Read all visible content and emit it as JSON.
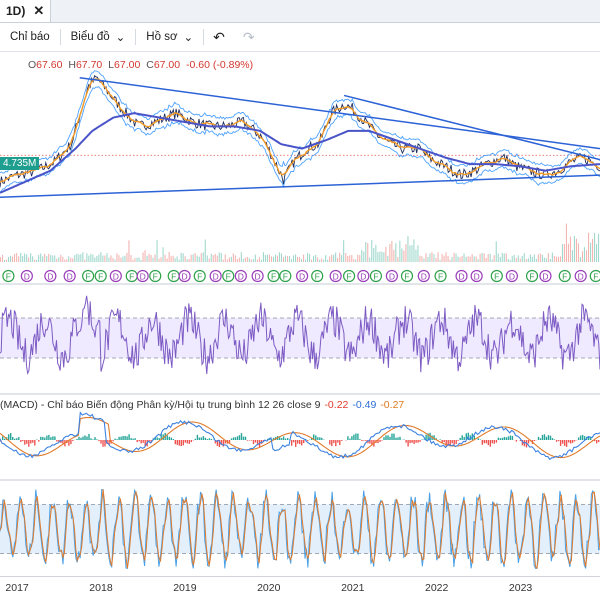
{
  "tab": {
    "title": "1D)",
    "close_glyph": "✕"
  },
  "toolbar": {
    "indicators_label": "Chỉ báo",
    "chart_type_label": "Biểu đồ",
    "profile_label": "Hồ sơ",
    "chevron": "⌄",
    "undo_glyph": "↶",
    "redo_glyph": "↷"
  },
  "ohlc": {
    "open_label": "O",
    "open": "67.60",
    "high_label": "H",
    "high": "67.70",
    "low_label": "L",
    "low": "67.00",
    "close_label": "C",
    "close": "67.00",
    "change": "-0.60 (-0.89%)"
  },
  "volume_label": "4.735M",
  "macd": {
    "title": "(MACD) - Chỉ báo Biến động Phân kỳ/Hội tụ trung bình 12 26 close 9",
    "value1": "-0.22",
    "value2": "-0.49",
    "value3": "-0.27"
  },
  "colors": {
    "price": "#1f2d5c",
    "ma_fast": "#f29a26",
    "ma_slow": "#4a54c9",
    "band": "#4fa3ff",
    "trendline": "#2c62d6",
    "rsi": "#7d5bc4",
    "rsi_fill": "#efeaff",
    "stoch_k": "#4aa0e6",
    "stoch_d": "#e07a2b",
    "stoch_fill": "#e3f0fb",
    "macd_line": "#3d82e0",
    "signal_line": "#e17b2a",
    "hist_up": "#26a69a",
    "hist_down": "#ef5350",
    "dividend": "#9a3db8",
    "earnings": "#2fa14a"
  },
  "markers": [
    {
      "t": 2017.0,
      "type": "F"
    },
    {
      "t": 2017.22,
      "type": "D"
    },
    {
      "t": 2017.5,
      "type": "D"
    },
    {
      "t": 2017.73,
      "type": "D"
    },
    {
      "t": 2017.95,
      "type": "F"
    },
    {
      "t": 2018.1,
      "type": "F"
    },
    {
      "t": 2018.28,
      "type": "D"
    },
    {
      "t": 2018.47,
      "type": "F"
    },
    {
      "t": 2018.6,
      "type": "D"
    },
    {
      "t": 2018.75,
      "type": "F"
    },
    {
      "t": 2018.97,
      "type": "F"
    },
    {
      "t": 2019.1,
      "type": "D"
    },
    {
      "t": 2019.28,
      "type": "F"
    },
    {
      "t": 2019.47,
      "type": "D"
    },
    {
      "t": 2019.62,
      "type": "F"
    },
    {
      "t": 2019.77,
      "type": "D"
    },
    {
      "t": 2019.97,
      "type": "D"
    },
    {
      "t": 2020.16,
      "type": "F"
    },
    {
      "t": 2020.3,
      "type": "F"
    },
    {
      "t": 2020.5,
      "type": "D"
    },
    {
      "t": 2020.68,
      "type": "F"
    },
    {
      "t": 2020.9,
      "type": "D"
    },
    {
      "t": 2021.06,
      "type": "F"
    },
    {
      "t": 2021.23,
      "type": "D"
    },
    {
      "t": 2021.38,
      "type": "F"
    },
    {
      "t": 2021.57,
      "type": "D"
    },
    {
      "t": 2021.75,
      "type": "F"
    },
    {
      "t": 2021.95,
      "type": "D"
    },
    {
      "t": 2022.15,
      "type": "F"
    },
    {
      "t": 2022.4,
      "type": "D"
    },
    {
      "t": 2022.58,
      "type": "D"
    },
    {
      "t": 2022.82,
      "type": "F"
    },
    {
      "t": 2023.0,
      "type": "D"
    },
    {
      "t": 2023.24,
      "type": "F"
    },
    {
      "t": 2023.4,
      "type": "D"
    },
    {
      "t": 2023.63,
      "type": "F"
    },
    {
      "t": 2023.82,
      "type": "D"
    },
    {
      "t": 2024.0,
      "type": "F"
    }
  ],
  "chart_data": {
    "type": "line",
    "interval": "1D",
    "x_tick_labels": [
      "2017",
      "2018",
      "2019",
      "2020",
      "2021",
      "2022",
      "2023"
    ],
    "x_range": [
      2016.9,
      2024.05
    ],
    "price_pane": {
      "ylim": [
        40,
        110
      ],
      "price_points": [
        [
          2016.9,
          55
        ],
        [
          2017.1,
          58
        ],
        [
          2017.35,
          60
        ],
        [
          2017.55,
          64
        ],
        [
          2017.75,
          72
        ],
        [
          2017.85,
          85
        ],
        [
          2017.95,
          98
        ],
        [
          2018.05,
          102
        ],
        [
          2018.18,
          96
        ],
        [
          2018.35,
          88
        ],
        [
          2018.55,
          80
        ],
        [
          2018.75,
          82
        ],
        [
          2019.0,
          86
        ],
        [
          2019.2,
          82
        ],
        [
          2019.4,
          80
        ],
        [
          2019.6,
          80
        ],
        [
          2019.8,
          82
        ],
        [
          2020.0,
          76
        ],
        [
          2020.1,
          70
        ],
        [
          2020.2,
          62
        ],
        [
          2020.28,
          56
        ],
        [
          2020.4,
          64
        ],
        [
          2020.55,
          70
        ],
        [
          2020.7,
          72
        ],
        [
          2020.85,
          86
        ],
        [
          2021.0,
          90
        ],
        [
          2021.1,
          88
        ],
        [
          2021.25,
          82
        ],
        [
          2021.4,
          76
        ],
        [
          2021.55,
          72
        ],
        [
          2021.7,
          70
        ],
        [
          2021.9,
          70
        ],
        [
          2022.0,
          66
        ],
        [
          2022.2,
          62
        ],
        [
          2022.4,
          58
        ],
        [
          2022.55,
          60
        ],
        [
          2022.75,
          64
        ],
        [
          2022.9,
          66
        ],
        [
          2023.05,
          62
        ],
        [
          2023.2,
          60
        ],
        [
          2023.4,
          58
        ],
        [
          2023.55,
          60
        ],
        [
          2023.7,
          64
        ],
        [
          2023.85,
          66
        ],
        [
          2024.05,
          62
        ]
      ],
      "ma_slow_points": [
        [
          2016.9,
          50
        ],
        [
          2017.2,
          55
        ],
        [
          2017.5,
          60
        ],
        [
          2017.8,
          70
        ],
        [
          2018.0,
          78
        ],
        [
          2018.25,
          84
        ],
        [
          2018.5,
          86
        ],
        [
          2018.8,
          84
        ],
        [
          2019.1,
          82
        ],
        [
          2019.4,
          80
        ],
        [
          2019.7,
          80
        ],
        [
          2020.0,
          78
        ],
        [
          2020.25,
          72
        ],
        [
          2020.5,
          70
        ],
        [
          2020.8,
          74
        ],
        [
          2021.05,
          78
        ],
        [
          2021.3,
          78
        ],
        [
          2021.6,
          74
        ],
        [
          2021.9,
          70
        ],
        [
          2022.2,
          66
        ],
        [
          2022.5,
          63
        ],
        [
          2022.8,
          63
        ],
        [
          2023.1,
          62
        ],
        [
          2023.4,
          60
        ],
        [
          2023.7,
          62
        ],
        [
          2024.05,
          63
        ]
      ],
      "last_price": 67.0,
      "open": 67.6,
      "high": 67.7,
      "low": 67.0,
      "close": 67.0,
      "change": -0.6,
      "change_pct": -0.89
    },
    "trendlines": [
      {
        "from": [
          2017.85,
          102
        ],
        "to": [
          2024.05,
          70
        ]
      },
      {
        "from": [
          2021.0,
          94
        ],
        "to": [
          2024.05,
          65
        ]
      },
      {
        "from": [
          2016.9,
          48
        ],
        "to": [
          2024.05,
          58
        ]
      }
    ],
    "volume_pane": {
      "label": "4.735M"
    },
    "rsi_pane": {
      "ylim": [
        0,
        100
      ],
      "upper_band": 70,
      "lower_band": 30
    },
    "macd_pane": {
      "title": "(MACD) - Chỉ báo Biến động Phân kỳ/Hội tụ trung bình 12 26 close 9",
      "fast": 12,
      "slow": 26,
      "signal": 9,
      "macd": -0.22,
      "signal_value": -0.49,
      "histogram": -0.27
    },
    "stoch_pane": {
      "ylim": [
        0,
        100
      ],
      "upper_band": 80,
      "lower_band": 20
    }
  }
}
